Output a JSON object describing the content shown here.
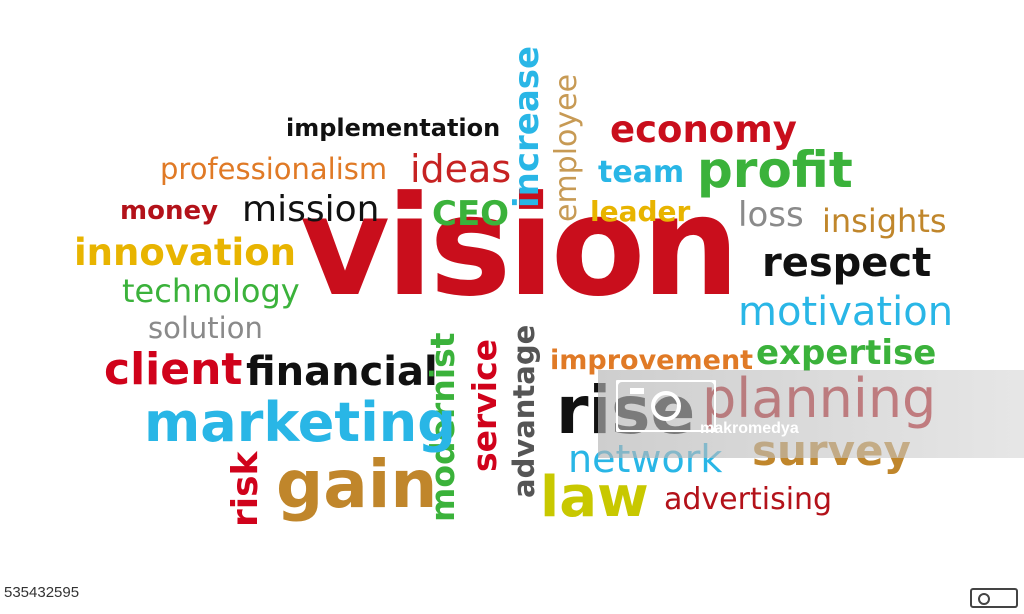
{
  "words": {
    "vision": "vision",
    "implementation": "implementation",
    "professionalism": "professionalism",
    "ideas": "ideas",
    "increase": "increase",
    "employee": "employee",
    "economy": "economy",
    "team": "team",
    "profit": "profit",
    "money": "money",
    "mission": "mission",
    "ceo": "CEO",
    "leader": "leader",
    "loss": "loss",
    "insights": "insights",
    "innovation": "innovation",
    "technology": "technology",
    "solution": "solution",
    "respect": "respect",
    "motivation": "motivation",
    "client": "client",
    "financial": "financial",
    "improvement": "improvement",
    "expertise": "expertise",
    "modernist": "modernist",
    "service": "service",
    "advantage": "advantage",
    "rise": "rise",
    "planning": "planning",
    "marketing": "marketing",
    "network": "network",
    "survey": "survey",
    "risk": "risk",
    "gain": "gain",
    "law": "law",
    "advertising": "advertising"
  },
  "watermark": {
    "text": "makromedya"
  },
  "image_id": "535432595",
  "colors": {
    "red": "#d0021b",
    "dark_red": "#b3121a",
    "orange": "#e67e22",
    "gold": "#e8b400",
    "green": "#2eaa2e",
    "blue": "#29b6e6",
    "black": "#111111",
    "gray": "#8a8a8a",
    "brown": "#c0862b",
    "olive": "#c8c800"
  }
}
